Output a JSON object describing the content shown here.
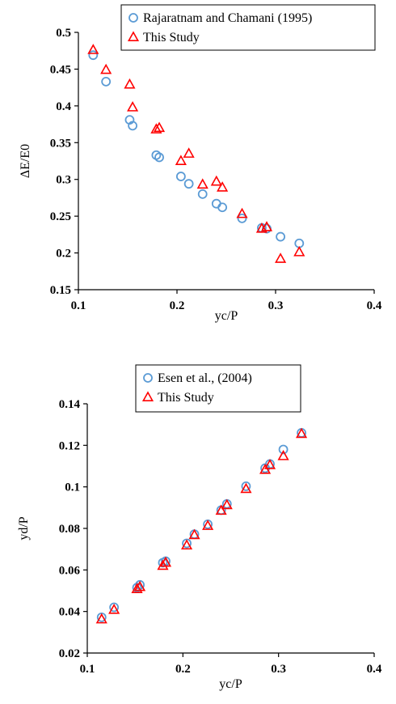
{
  "chart_data": [
    {
      "type": "scatter",
      "xlabel": "yc/P",
      "ylabel": "ΔE/E0",
      "xlim": [
        0.1,
        0.4
      ],
      "ylim": [
        0.15,
        0.5
      ],
      "xticks": [
        "0.1",
        "0.2",
        "0.3",
        "0.4"
      ],
      "yticks": [
        "0.15",
        "0.2",
        "0.25",
        "0.3",
        "0.35",
        "0.4",
        "0.45",
        "0.5"
      ],
      "grid": false,
      "legend": "top-right",
      "series": [
        {
          "name": "Rajaratnam and Chamani (1995)",
          "marker": "circle",
          "color": "#5b9bd5",
          "points": [
            [
              0.115,
              0.469
            ],
            [
              0.128,
              0.433
            ],
            [
              0.152,
              0.381
            ],
            [
              0.155,
              0.373
            ],
            [
              0.179,
              0.333
            ],
            [
              0.182,
              0.33
            ],
            [
              0.204,
              0.304
            ],
            [
              0.212,
              0.294
            ],
            [
              0.226,
              0.28
            ],
            [
              0.24,
              0.267
            ],
            [
              0.246,
              0.262
            ],
            [
              0.266,
              0.247
            ],
            [
              0.286,
              0.234
            ],
            [
              0.291,
              0.233
            ],
            [
              0.305,
              0.222
            ],
            [
              0.324,
              0.213
            ]
          ]
        },
        {
          "name": "This Study",
          "marker": "triangle",
          "color": "#ff0000",
          "points": [
            [
              0.115,
              0.476
            ],
            [
              0.128,
              0.449
            ],
            [
              0.152,
              0.429
            ],
            [
              0.155,
              0.398
            ],
            [
              0.179,
              0.368
            ],
            [
              0.182,
              0.37
            ],
            [
              0.204,
              0.325
            ],
            [
              0.212,
              0.335
            ],
            [
              0.226,
              0.293
            ],
            [
              0.24,
              0.297
            ],
            [
              0.246,
              0.289
            ],
            [
              0.266,
              0.253
            ],
            [
              0.286,
              0.233
            ],
            [
              0.291,
              0.235
            ],
            [
              0.305,
              0.192
            ],
            [
              0.324,
              0.201
            ]
          ]
        }
      ]
    },
    {
      "type": "scatter",
      "xlabel": "yc/P",
      "ylabel": "yd/P",
      "xlim": [
        0.1,
        0.4
      ],
      "ylim": [
        0.02,
        0.14
      ],
      "xticks": [
        "0.1",
        "0.2",
        "0.3",
        "0.4"
      ],
      "yticks": [
        "0.02",
        "0.04",
        "0.06",
        "0.08",
        "0.1",
        "0.12",
        "0.14"
      ],
      "grid": false,
      "legend": "top-center",
      "series": [
        {
          "name": "Esen et al., (2004)",
          "marker": "circle",
          "color": "#5b9bd5",
          "points": [
            [
              0.115,
              0.0372
            ],
            [
              0.128,
              0.042
            ],
            [
              0.152,
              0.0515
            ],
            [
              0.155,
              0.0528
            ],
            [
              0.179,
              0.0635
            ],
            [
              0.182,
              0.0642
            ],
            [
              0.204,
              0.0728
            ],
            [
              0.212,
              0.0772
            ],
            [
              0.226,
              0.082
            ],
            [
              0.24,
              0.0888
            ],
            [
              0.246,
              0.0918
            ],
            [
              0.266,
              0.1003
            ],
            [
              0.286,
              0.109
            ],
            [
              0.291,
              0.111
            ],
            [
              0.305,
              0.118
            ],
            [
              0.324,
              0.126
            ]
          ]
        },
        {
          "name": "This Study",
          "marker": "triangle",
          "color": "#ff0000",
          "points": [
            [
              0.115,
              0.0362
            ],
            [
              0.128,
              0.0408
            ],
            [
              0.152,
              0.0508
            ],
            [
              0.155,
              0.0518
            ],
            [
              0.179,
              0.062
            ],
            [
              0.182,
              0.0635
            ],
            [
              0.204,
              0.0718
            ],
            [
              0.212,
              0.0768
            ],
            [
              0.226,
              0.0812
            ],
            [
              0.24,
              0.0885
            ],
            [
              0.246,
              0.0912
            ],
            [
              0.266,
              0.099
            ],
            [
              0.286,
              0.1082
            ],
            [
              0.291,
              0.1105
            ],
            [
              0.305,
              0.1148
            ],
            [
              0.324,
              0.1255
            ]
          ]
        }
      ]
    }
  ]
}
